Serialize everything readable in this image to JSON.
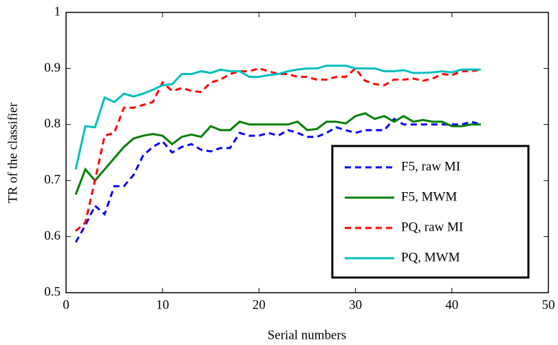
{
  "chart_data": {
    "type": "line",
    "xlabel": "Serial numbers",
    "ylabel": "TR of the classifier",
    "x": [
      1,
      2,
      3,
      4,
      5,
      6,
      7,
      8,
      9,
      10,
      11,
      12,
      13,
      14,
      15,
      16,
      17,
      18,
      19,
      20,
      21,
      22,
      23,
      24,
      25,
      26,
      27,
      28,
      29,
      30,
      31,
      32,
      33,
      34,
      35,
      36,
      37,
      38,
      39,
      40,
      41,
      42,
      43
    ],
    "series": [
      {
        "name": "F5, raw MI",
        "color": "#0000ff",
        "style": "dashed",
        "values": [
          0.59,
          0.62,
          0.655,
          0.64,
          0.69,
          0.69,
          0.71,
          0.745,
          0.76,
          0.77,
          0.75,
          0.76,
          0.765,
          0.755,
          0.752,
          0.758,
          0.758,
          0.785,
          0.78,
          0.78,
          0.785,
          0.78,
          0.79,
          0.785,
          0.778,
          0.778,
          0.785,
          0.795,
          0.79,
          0.785,
          0.79,
          0.79,
          0.79,
          0.81,
          0.8,
          0.8,
          0.8,
          0.8,
          0.8,
          0.8,
          0.8,
          0.805,
          0.8
        ]
      },
      {
        "name": "F5, MWM",
        "color": "#007f00",
        "style": "solid",
        "values": [
          0.675,
          0.72,
          0.7,
          0.72,
          0.74,
          0.76,
          0.775,
          0.78,
          0.783,
          0.78,
          0.765,
          0.778,
          0.782,
          0.778,
          0.797,
          0.79,
          0.79,
          0.805,
          0.8,
          0.8,
          0.8,
          0.8,
          0.8,
          0.805,
          0.79,
          0.792,
          0.805,
          0.805,
          0.802,
          0.815,
          0.82,
          0.81,
          0.815,
          0.805,
          0.815,
          0.805,
          0.808,
          0.805,
          0.805,
          0.797,
          0.797,
          0.8,
          0.8
        ]
      },
      {
        "name": "PQ, raw MI",
        "color": "#ff0000",
        "style": "dashed",
        "values": [
          0.61,
          0.625,
          0.7,
          0.78,
          0.785,
          0.83,
          0.83,
          0.835,
          0.84,
          0.875,
          0.86,
          0.865,
          0.86,
          0.858,
          0.875,
          0.88,
          0.89,
          0.895,
          0.895,
          0.9,
          0.895,
          0.89,
          0.89,
          0.885,
          0.885,
          0.88,
          0.88,
          0.885,
          0.885,
          0.9,
          0.878,
          0.872,
          0.87,
          0.88,
          0.88,
          0.882,
          0.878,
          0.882,
          0.89,
          0.888,
          0.895,
          0.895,
          0.898
        ]
      },
      {
        "name": "PQ, MWM",
        "color": "#00bfbf",
        "style": "solid",
        "values": [
          0.72,
          0.797,
          0.795,
          0.848,
          0.84,
          0.855,
          0.85,
          0.855,
          0.862,
          0.87,
          0.872,
          0.89,
          0.89,
          0.895,
          0.892,
          0.898,
          0.895,
          0.895,
          0.885,
          0.885,
          0.888,
          0.89,
          0.895,
          0.898,
          0.9,
          0.9,
          0.905,
          0.905,
          0.905,
          0.9,
          0.9,
          0.9,
          0.895,
          0.895,
          0.897,
          0.892,
          0.892,
          0.893,
          0.895,
          0.893,
          0.898,
          0.898,
          0.898
        ]
      }
    ],
    "xlim": [
      0,
      50
    ],
    "xticks": [
      0,
      10,
      20,
      30,
      40,
      50
    ],
    "ylim": [
      0.5,
      1
    ],
    "yticks": [
      0.5,
      0.6,
      0.7,
      0.8,
      0.9,
      1
    ],
    "grid": false,
    "legend": "lower right"
  }
}
